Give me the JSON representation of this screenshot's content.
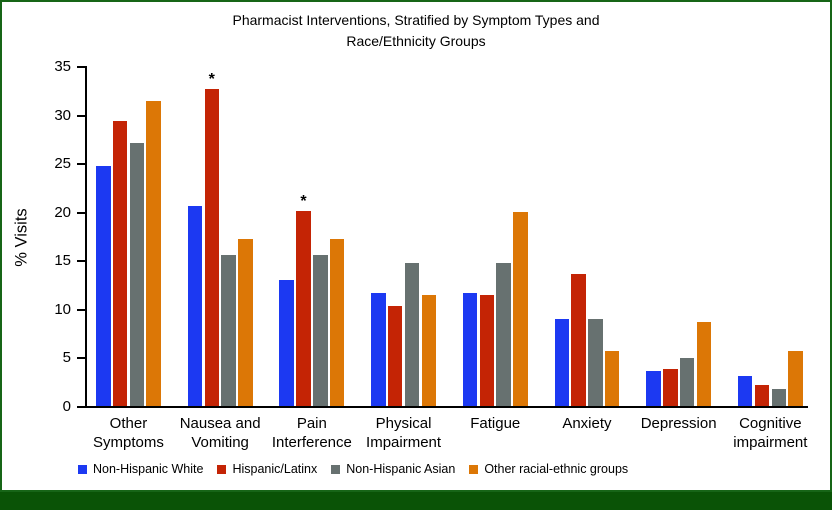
{
  "title": {
    "line1": "Pharmacist Interventions, Stratified by Symptom Types and",
    "line2": "Race/Ethnicity Groups"
  },
  "frame": {
    "border_color": "#176517",
    "bottom_band_color": "#0a5306"
  },
  "chart_data": {
    "type": "bar",
    "title": "Pharmacist Interventions, Stratified by Symptom Types and Race/Ethnicity Groups",
    "xlabel": "",
    "ylabel": "% Visits",
    "ylim": [
      0,
      35
    ],
    "yticks": [
      0,
      5,
      10,
      15,
      20,
      25,
      30,
      35
    ],
    "grid": false,
    "legend_position": "bottom",
    "categories": [
      "Other Symptoms",
      "Nausea and Vomiting",
      "Pain Interference",
      "Physical Impairment",
      "Fatigue",
      "Anxiety",
      "Depression",
      "Cognitive impairment"
    ],
    "category_label_lines": [
      [
        "Other",
        "Symptoms"
      ],
      [
        "Nausea and",
        "Vomiting"
      ],
      [
        "Pain",
        "Interference"
      ],
      [
        "Physical",
        "Impairment"
      ],
      [
        "Fatigue"
      ],
      [
        "Anxiety"
      ],
      [
        "Depression"
      ],
      [
        "Cognitive",
        "impairment"
      ]
    ],
    "series": [
      {
        "name": "Non-Hispanic White",
        "color": "#1c39f2",
        "values": [
          24.7,
          20.6,
          13.0,
          11.6,
          11.6,
          9.0,
          3.6,
          3.1
        ]
      },
      {
        "name": "Hispanic/Latinx",
        "color": "#c42405",
        "values": [
          29.3,
          32.6,
          20.1,
          10.3,
          11.4,
          13.6,
          3.8,
          2.2
        ]
      },
      {
        "name": "Non-Hispanic Asian",
        "color": "#677170",
        "values": [
          27.1,
          15.5,
          15.5,
          14.7,
          14.7,
          9.0,
          4.9,
          1.7
        ]
      },
      {
        "name": "Other racial-ethnic groups",
        "color": "#dc7706",
        "values": [
          31.4,
          17.2,
          17.2,
          11.4,
          20.0,
          5.7,
          8.6,
          5.7
        ]
      }
    ],
    "annotations": [
      {
        "text": "*",
        "series": "Hispanic/Latinx",
        "category": "Nausea and Vomiting"
      },
      {
        "text": "*",
        "series": "Hispanic/Latinx",
        "category": "Pain Interference"
      }
    ]
  }
}
